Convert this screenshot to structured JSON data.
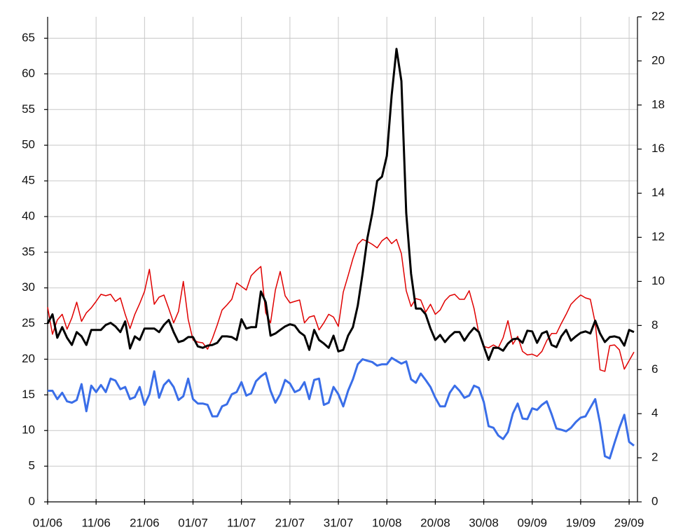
{
  "chart_data": {
    "type": "line",
    "categories": [
      "01/06",
      null,
      null,
      null,
      null,
      null,
      null,
      null,
      null,
      null,
      "11/06",
      null,
      null,
      null,
      null,
      null,
      null,
      null,
      null,
      null,
      "21/06",
      null,
      null,
      null,
      null,
      null,
      null,
      null,
      null,
      null,
      "01/07",
      null,
      null,
      null,
      null,
      null,
      null,
      null,
      null,
      null,
      "11/07",
      null,
      null,
      null,
      null,
      null,
      null,
      null,
      null,
      null,
      "21/07",
      null,
      null,
      null,
      null,
      null,
      null,
      null,
      null,
      null,
      "31/07",
      null,
      null,
      null,
      null,
      null,
      null,
      null,
      null,
      null,
      "10/08",
      null,
      null,
      null,
      null,
      null,
      null,
      null,
      null,
      null,
      "20/08",
      null,
      null,
      null,
      null,
      null,
      null,
      null,
      null,
      null,
      "30/08",
      null,
      null,
      null,
      null,
      null,
      null,
      null,
      null,
      null,
      "09/09",
      null,
      null,
      null,
      null,
      null,
      null,
      null,
      null,
      null,
      "19/09",
      null,
      null,
      null,
      null,
      null,
      null,
      null,
      null,
      null,
      "29/09",
      null
    ],
    "series": [
      {
        "color": "#e00000",
        "width": 1.5,
        "values": [
          27.3,
          23.5,
          25.5,
          26.3,
          24.2,
          25.8,
          28,
          25.3,
          26.5,
          27.2,
          28.1,
          29.1,
          28.9,
          29.1,
          28.1,
          28.6,
          26.3,
          24.3,
          26.3,
          27.8,
          29.5,
          32.6,
          27.7,
          28.7,
          29,
          27.1,
          25.1,
          26.7,
          30.9,
          25.6,
          22.7,
          22.4,
          22.3,
          21.4,
          22.9,
          24.8,
          26.9,
          27.6,
          28.4,
          30.7,
          30.2,
          29.7,
          31.7,
          32.4,
          33,
          26.5,
          25.1,
          29.7,
          32.3,
          28.9,
          27.9,
          28.1,
          28.3,
          25.1,
          25.9,
          26.1,
          24.1,
          25.1,
          26.3,
          25.9,
          24.6,
          29.4,
          31.7,
          34.1,
          36.1,
          36.8,
          36.5,
          36.1,
          35.6,
          36.6,
          37.1,
          36.2,
          36.8,
          34.8,
          29.6,
          27.4,
          28.5,
          28.3,
          26.6,
          27.7,
          26.3,
          26.9,
          28.2,
          28.9,
          29.1,
          28.4,
          28.4,
          29.6,
          27.1,
          23.6,
          21.8,
          21.6,
          22,
          21.6,
          23,
          25.4,
          22.1,
          23.2,
          21.1,
          20.6,
          20.7,
          20.4,
          21.1,
          22.6,
          23.6,
          23.6,
          25,
          26.3,
          27.7,
          28.4,
          29,
          28.6,
          28.4,
          25.1,
          18.5,
          18.3,
          21.9,
          22,
          21.3,
          18.6,
          19.8,
          21
        ]
      },
      {
        "color": "#000000",
        "width": 3,
        "values": [
          25,
          26.3,
          23,
          24.5,
          23,
          22,
          23.8,
          23.2,
          22,
          24.1,
          24.1,
          24.1,
          24.8,
          25.1,
          24.6,
          23.8,
          25.3,
          21.5,
          23.2,
          22.7,
          24.3,
          24.3,
          24.3,
          23.8,
          24.8,
          25.5,
          23.8,
          22.4,
          22.6,
          23.1,
          23.1,
          21.8,
          21.6,
          21.9,
          22,
          22.3,
          23.2,
          23.2,
          23.1,
          22.7,
          25.6,
          24.3,
          24.5,
          24.5,
          29.5,
          28,
          23.3,
          23.6,
          24.1,
          24.6,
          24.9,
          24.7,
          23.8,
          23.3,
          21.3,
          24.1,
          22.7,
          22.2,
          21.6,
          23.3,
          21.1,
          21.3,
          23.3,
          24.5,
          27.5,
          32,
          37,
          40.5,
          45,
          45.6,
          48.5,
          57,
          63.5,
          59,
          40.5,
          32,
          27.1,
          27.1,
          26.3,
          24.3,
          22.7,
          23.4,
          22.4,
          23.2,
          23.8,
          23.8,
          22.6,
          23.6,
          24.4,
          23.8,
          21.8,
          19.9,
          21.6,
          21.6,
          21.2,
          22.2,
          22.8,
          22.9,
          22.3,
          24,
          23.9,
          22.3,
          23.6,
          23.9,
          22,
          21.7,
          23.2,
          24.1,
          22.6,
          23.2,
          23.7,
          23.9,
          23.6,
          25.4,
          23.6,
          22.4,
          23.1,
          23.2,
          23,
          21.9,
          24.1,
          23.8
        ]
      },
      {
        "color": "#3a6ee8",
        "width": 3,
        "axis": "y2",
        "values": [
          5.04,
          5.04,
          4.66,
          4.95,
          4.56,
          4.5,
          4.62,
          5.34,
          4.11,
          5.27,
          4.98,
          5.3,
          4.98,
          5.59,
          5.5,
          5.11,
          5.21,
          4.66,
          4.75,
          5.21,
          4.4,
          4.88,
          5.92,
          4.72,
          5.3,
          5.53,
          5.21,
          4.62,
          4.79,
          5.59,
          4.66,
          4.46,
          4.46,
          4.4,
          3.88,
          3.88,
          4.33,
          4.43,
          4.88,
          4.98,
          5.43,
          4.82,
          4.92,
          5.47,
          5.69,
          5.85,
          5.04,
          4.5,
          4.88,
          5.53,
          5.37,
          4.98,
          5.08,
          5.43,
          4.66,
          5.53,
          5.59,
          4.4,
          4.5,
          5.21,
          4.88,
          4.33,
          5.04,
          5.56,
          6.24,
          6.47,
          6.4,
          6.34,
          6.18,
          6.24,
          6.24,
          6.53,
          6.4,
          6.27,
          6.37,
          5.56,
          5.4,
          5.82,
          5.53,
          5.21,
          4.72,
          4.33,
          4.33,
          4.95,
          5.27,
          5.04,
          4.72,
          4.82,
          5.27,
          5.17,
          4.53,
          3.43,
          3.36,
          3.01,
          2.85,
          3.17,
          4.01,
          4.46,
          3.78,
          3.75,
          4.24,
          4.17,
          4.4,
          4.56,
          3.98,
          3.33,
          3.27,
          3.2,
          3.36,
          3.62,
          3.82,
          3.88,
          4.27,
          4.66,
          3.56,
          2.07,
          1.97,
          2.68,
          3.36,
          3.95,
          2.72,
          2.55
        ]
      }
    ],
    "ylim": [
      0,
      68
    ],
    "yticks": [
      0,
      5,
      10,
      15,
      20,
      25,
      30,
      35,
      40,
      45,
      50,
      55,
      60,
      65
    ],
    "y2lim": [
      0,
      22
    ],
    "y2ticks": [
      0,
      2,
      4,
      6,
      8,
      10,
      12,
      14,
      16,
      18,
      20,
      22
    ],
    "grid": true
  }
}
